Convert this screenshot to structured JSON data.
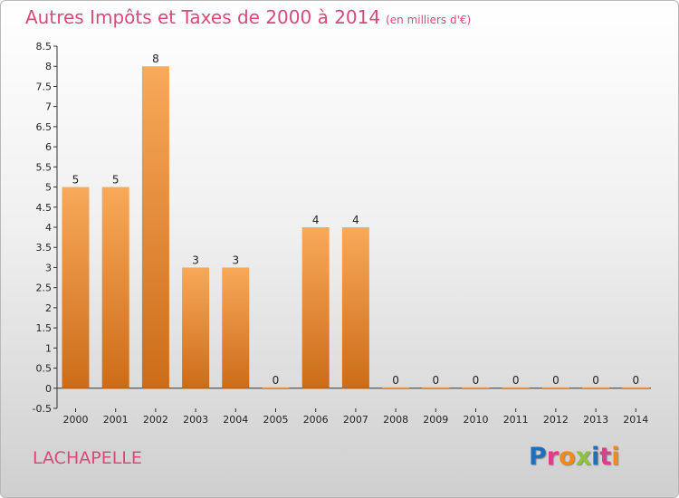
{
  "header": {
    "title": "Autres Impôts et Taxes de 2000 à 2014",
    "subtitle": "(en milliers d'€)"
  },
  "commune": "LACHAPELLE",
  "logo": {
    "text": "Proxiti",
    "letter_colors": [
      "#1f6fbf",
      "#e03c8c",
      "#f08a1c",
      "#8cc43c",
      "#1f6fbf",
      "#e03c8c",
      "#f08a1c"
    ]
  },
  "colors": {
    "accent": "#d94a78",
    "bar_light": "#f8a95a",
    "bar_dark": "#cc6c18",
    "grid": "#333333"
  },
  "chart_data": {
    "type": "bar",
    "categories": [
      "2000",
      "2001",
      "2002",
      "2003",
      "2004",
      "2005",
      "2006",
      "2007",
      "2008",
      "2009",
      "2010",
      "2011",
      "2012",
      "2013",
      "2014"
    ],
    "values": [
      5,
      5,
      8,
      3,
      3,
      0,
      4,
      4,
      0,
      0,
      0,
      0,
      0,
      0,
      0
    ],
    "value_labels": [
      "5",
      "5",
      "8",
      "3",
      "3",
      "0",
      "4",
      "4",
      "0",
      "0",
      "0",
      "0",
      "0",
      "0",
      "0"
    ],
    "y_ticks": [
      "-0.5",
      "0",
      "0.5",
      "1",
      "1.5",
      "2",
      "2.5",
      "3",
      "3.5",
      "4",
      "4.5",
      "5",
      "5.5",
      "6",
      "6.5",
      "7",
      "7.5",
      "8",
      "8.5"
    ],
    "ylim": [
      -0.5,
      8.5
    ],
    "grid": false,
    "xlabel": "",
    "ylabel": ""
  }
}
